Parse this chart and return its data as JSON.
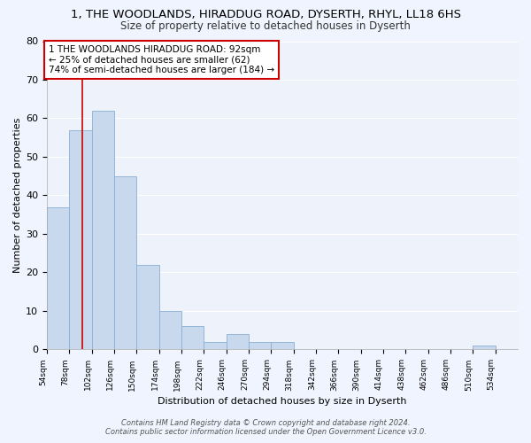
{
  "title_line1": "1, THE WOODLANDS, HIRADDUG ROAD, DYSERTH, RHYL, LL18 6HS",
  "title_line2": "Size of property relative to detached houses in Dyserth",
  "xlabel": "Distribution of detached houses by size in Dyserth",
  "ylabel": "Number of detached properties",
  "bar_color": "#c8d9ee",
  "bar_edge_color": "#8aafd4",
  "background_color": "#eef2fb",
  "grid_color": "#ffffff",
  "bins_left": [
    54,
    78,
    102,
    126,
    150,
    174,
    198,
    222,
    246,
    270,
    294,
    318,
    342,
    366,
    390,
    414,
    438,
    462,
    486,
    510
  ],
  "values": [
    37,
    57,
    62,
    45,
    22,
    10,
    6,
    2,
    4,
    2,
    2,
    0,
    0,
    0,
    0,
    0,
    0,
    0,
    0,
    1
  ],
  "last_tick": 534,
  "red_line_x": 92,
  "annotation_text": "1 THE WOODLANDS HIRADDUG ROAD: 92sqm\n← 25% of detached houses are smaller (62)\n74% of semi-detached houses are larger (184) →",
  "annotation_box_color": "#ffffff",
  "annotation_box_edge_color": "#cc0000",
  "red_line_color": "#cc0000",
  "ylim": [
    0,
    80
  ],
  "yticks": [
    0,
    10,
    20,
    30,
    40,
    50,
    60,
    70,
    80
  ],
  "footer_line1": "Contains HM Land Registry data © Crown copyright and database right 2024.",
  "footer_line2": "Contains public sector information licensed under the Open Government Licence v3.0.",
  "bin_width": 24,
  "title_fontsize": 9.5,
  "subtitle_fontsize": 8.5,
  "axis_label_fontsize": 8,
  "tick_fontsize": 6.5,
  "annotation_fontsize": 7.5,
  "footer_fontsize": 6.0
}
